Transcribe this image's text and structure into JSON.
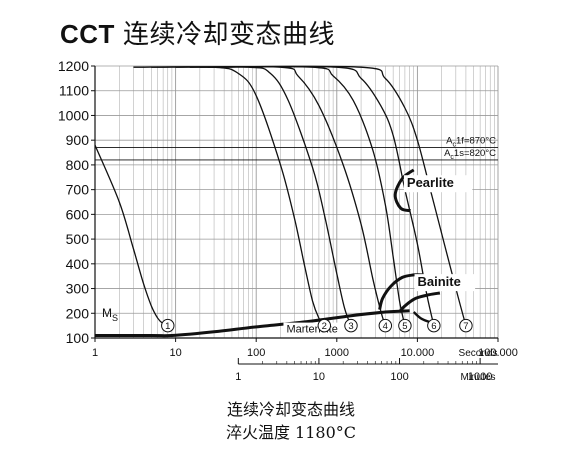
{
  "title": {
    "abbr": "CCT",
    "text": "连续冷却变态曲线"
  },
  "caption": {
    "line1": "连续冷却变态曲线",
    "line2": "淬火温度 1180°C"
  },
  "colors": {
    "ink": "#111111",
    "grid": "#9a9a9a",
    "background": "#ffffff"
  },
  "chart_data": {
    "type": "line",
    "title": "连续冷却变态曲线",
    "y_axis": {
      "label": "",
      "scale": "linear",
      "range": [
        100,
        1200
      ],
      "ticks": [
        "1200",
        "1100",
        "1000",
        "900",
        "800",
        "700",
        "600",
        "500",
        "400",
        "300",
        "200",
        "100"
      ]
    },
    "x_axes": [
      {
        "unit": "Seconds",
        "scale": "log",
        "range": [
          1,
          100000
        ],
        "ticks": [
          {
            "value": 1,
            "label": "1"
          },
          {
            "value": 10,
            "label": "10"
          },
          {
            "value": 100,
            "label": "100"
          },
          {
            "value": 1000,
            "label": "1000"
          },
          {
            "value": 10000,
            "label": "10.000"
          },
          {
            "value": 100000,
            "label": "100.000"
          }
        ]
      },
      {
        "unit": "Minutes",
        "scale": "log",
        "ticks": [
          {
            "value": 1,
            "label": "1"
          },
          {
            "value": 10,
            "label": "10"
          },
          {
            "value": 100,
            "label": "100"
          },
          {
            "value": 1000,
            "label": "1000"
          }
        ]
      }
    ],
    "grid": true,
    "reference_lines": [
      {
        "label": "Ac1f=870°C",
        "y": 870
      },
      {
        "label": "Ac1s=820°C",
        "y": 820
      }
    ],
    "ms_label": "MS",
    "ms_temperature": 110,
    "regions": [
      {
        "label": "Pearlite",
        "x": 7000,
        "y": 730
      },
      {
        "label": "Bainite",
        "x": 6000,
        "y": 330
      },
      {
        "label": "Martensite",
        "x": 200,
        "y": 138
      }
    ],
    "cooling_curves": [
      {
        "name": "1",
        "end": {
          "x": 8,
          "y": 150
        },
        "points": [
          [
            1,
            880
          ],
          [
            2,
            650
          ],
          [
            3,
            460
          ],
          [
            4,
            320
          ],
          [
            5,
            230
          ],
          [
            6,
            180
          ],
          [
            7,
            158
          ],
          [
            8,
            150
          ]
        ]
      },
      {
        "name": "2",
        "end": {
          "x": 700,
          "y": 150
        },
        "points": [
          [
            3,
            1195
          ],
          [
            30,
            1195
          ],
          [
            60,
            1170
          ],
          [
            100,
            1080
          ],
          [
            200,
            800
          ],
          [
            300,
            580
          ],
          [
            400,
            390
          ],
          [
            500,
            250
          ],
          [
            600,
            180
          ],
          [
            700,
            150
          ]
        ]
      },
      {
        "name": "3",
        "end": {
          "x": 1500,
          "y": 150
        },
        "points": [
          [
            5,
            1195
          ],
          [
            80,
            1195
          ],
          [
            150,
            1170
          ],
          [
            250,
            1060
          ],
          [
            500,
            790
          ],
          [
            700,
            600
          ],
          [
            1000,
            360
          ],
          [
            1250,
            220
          ],
          [
            1500,
            150
          ]
        ]
      },
      {
        "name": "4",
        "end": {
          "x": 4000,
          "y": 150
        },
        "points": [
          [
            10,
            1195
          ],
          [
            200,
            1195
          ],
          [
            330,
            1160
          ],
          [
            600,
            1040
          ],
          [
            1200,
            800
          ],
          [
            2000,
            560
          ],
          [
            2800,
            340
          ],
          [
            3500,
            210
          ],
          [
            4000,
            150
          ]
        ]
      },
      {
        "name": "5",
        "end": {
          "x": 7000,
          "y": 150
        },
        "points": [
          [
            15,
            1195
          ],
          [
            500,
            1195
          ],
          [
            900,
            1160
          ],
          [
            1600,
            1060
          ],
          [
            2800,
            860
          ],
          [
            4000,
            640
          ],
          [
            5000,
            430
          ],
          [
            6000,
            250
          ],
          [
            7000,
            150
          ]
        ]
      },
      {
        "name": "6",
        "end": {
          "x": 16000,
          "y": 150
        },
        "points": [
          [
            20,
            1195
          ],
          [
            1000,
            1195
          ],
          [
            2000,
            1150
          ],
          [
            3500,
            1040
          ],
          [
            5000,
            920
          ],
          [
            7000,
            700
          ],
          [
            10000,
            480
          ],
          [
            13000,
            280
          ],
          [
            16000,
            150
          ]
        ]
      },
      {
        "name": "7",
        "end": {
          "x": 40000,
          "y": 150
        },
        "points": [
          [
            25,
            1195
          ],
          [
            2000,
            1195
          ],
          [
            4000,
            1150
          ],
          [
            7000,
            1030
          ],
          [
            10000,
            900
          ],
          [
            15000,
            680
          ],
          [
            22000,
            470
          ],
          [
            30000,
            300
          ],
          [
            40000,
            150
          ]
        ]
      }
    ]
  }
}
